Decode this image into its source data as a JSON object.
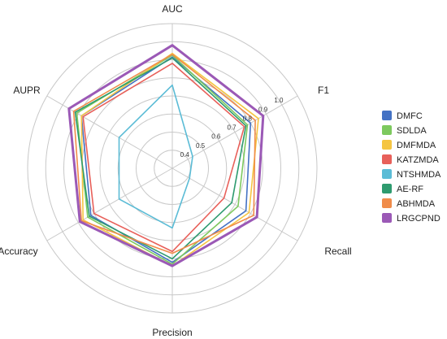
{
  "chart_data": {
    "type": "radar",
    "axes": [
      "AUC",
      "F1",
      "Recall",
      "Precision",
      "Accuracy",
      "AUPR"
    ],
    "ticks": [
      0.4,
      0.5,
      0.6,
      0.7,
      0.8,
      0.9,
      "1.0"
    ],
    "range": [
      0.3,
      1.1
    ],
    "grid": true,
    "legend_position": "right",
    "series": [
      {
        "name": "DMFC",
        "color": "#4472c4",
        "values": [
          0.915,
          0.8,
          0.77,
          0.82,
          0.82,
          0.88
        ]
      },
      {
        "name": "SDLDA",
        "color": "#7dc95e",
        "values": [
          0.925,
          0.78,
          0.72,
          0.83,
          0.84,
          0.91
        ]
      },
      {
        "name": "DMFMDA",
        "color": "#f5c542",
        "values": [
          0.935,
          0.85,
          0.79,
          0.84,
          0.87,
          0.88
        ]
      },
      {
        "name": "KATZMDA",
        "color": "#e8605a",
        "values": [
          0.88,
          0.76,
          0.63,
          0.76,
          0.8,
          0.87
        ]
      },
      {
        "name": "NTSHMDA",
        "color": "#5bbcd6",
        "values": [
          0.76,
          0.43,
          0.41,
          0.63,
          0.64,
          0.64
        ]
      },
      {
        "name": "AE-RF",
        "color": "#2e9b6f",
        "values": [
          0.91,
          0.77,
          0.68,
          0.8,
          0.83,
          0.92
        ]
      },
      {
        "name": "ABHMDA",
        "color": "#f08c4a",
        "values": [
          0.93,
          0.83,
          0.82,
          0.77,
          0.88,
          0.93
        ]
      },
      {
        "name": "LRGCPND",
        "color": "#9b59b6",
        "values": [
          0.98,
          0.88,
          0.84,
          0.84,
          0.89,
          0.96
        ]
      }
    ]
  }
}
